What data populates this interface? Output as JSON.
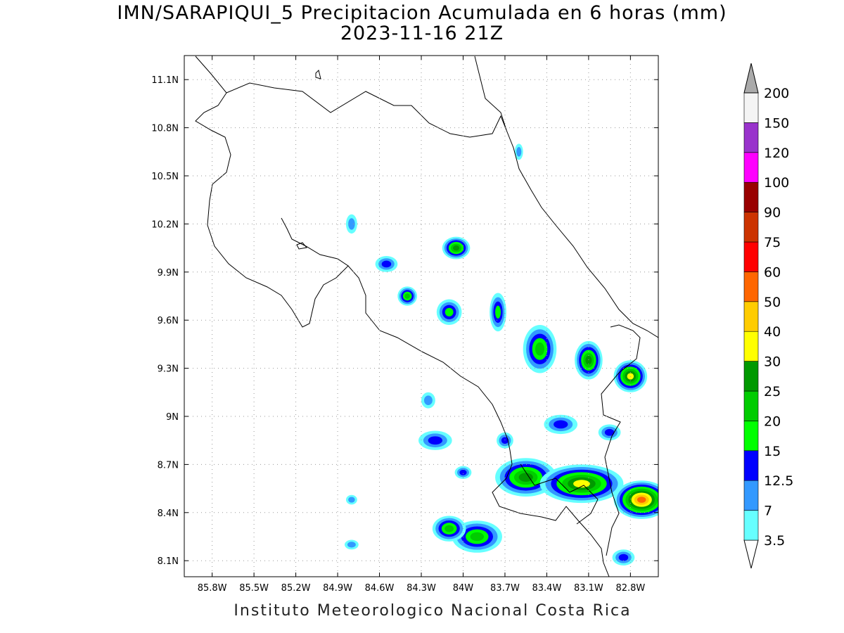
{
  "title": "IMN/SARAPIQUI_5 Precipitacion Acumulada en 6 horas (mm)",
  "subtitle": "2023-11-16 21Z",
  "footer": "Instituto Meteorologico Nacional Costa Rica",
  "map": {
    "lon_range": [
      -86.0,
      -82.6
    ],
    "lat_range": [
      8.0,
      11.25
    ],
    "lon_ticks": [
      {
        "value": -85.8,
        "label": "85.8W"
      },
      {
        "value": -85.5,
        "label": "85.5W"
      },
      {
        "value": -85.2,
        "label": "85.2W"
      },
      {
        "value": -84.9,
        "label": "84.9W"
      },
      {
        "value": -84.6,
        "label": "84.6W"
      },
      {
        "value": -84.3,
        "label": "84.3W"
      },
      {
        "value": -84.0,
        "label": "84W"
      },
      {
        "value": -83.7,
        "label": "83.7W"
      },
      {
        "value": -83.4,
        "label": "83.4W"
      },
      {
        "value": -83.1,
        "label": "83.1W"
      },
      {
        "value": -82.8,
        "label": "82.8W"
      }
    ],
    "lat_ticks": [
      {
        "value": 8.1,
        "label": "8.1N"
      },
      {
        "value": 8.4,
        "label": "8.4N"
      },
      {
        "value": 8.7,
        "label": "8.7N"
      },
      {
        "value": 9.0,
        "label": "9N"
      },
      {
        "value": 9.3,
        "label": "9.3N"
      },
      {
        "value": 9.6,
        "label": "9.6N"
      },
      {
        "value": 9.9,
        "label": "9.9N"
      },
      {
        "value": 10.2,
        "label": "10.2N"
      },
      {
        "value": 10.5,
        "label": "10.5N"
      },
      {
        "value": 10.8,
        "label": "10.8N"
      },
      {
        "value": 11.1,
        "label": "11.1N"
      }
    ],
    "grid": true
  },
  "colorbar": {
    "levels": [
      "3.5",
      "7",
      "12.5",
      "15",
      "20",
      "25",
      "30",
      "40",
      "50",
      "60",
      "75",
      "90",
      "100",
      "120",
      "150",
      "200"
    ],
    "colors": [
      "#ffffff",
      "#66ffff",
      "#3399ff",
      "#0000ff",
      "#00ff00",
      "#00cc00",
      "#009900",
      "#ffff00",
      "#ffcc00",
      "#ff6600",
      "#ff0000",
      "#cc3300",
      "#990000",
      "#ff00ff",
      "#9933cc",
      "#f4f4f4",
      "#aaaaaa"
    ]
  },
  "rain_cells": [
    {
      "lon": -83.55,
      "lat": 8.62,
      "rx": 0.22,
      "ry": 0.12,
      "max": 5
    },
    {
      "lon": -83.15,
      "lat": 8.58,
      "rx": 0.3,
      "ry": 0.12,
      "max": 6
    },
    {
      "lon": -82.72,
      "lat": 8.48,
      "rx": 0.2,
      "ry": 0.12,
      "max": 8
    },
    {
      "lon": -83.9,
      "lat": 8.25,
      "rx": 0.18,
      "ry": 0.1,
      "max": 4
    },
    {
      "lon": -84.1,
      "lat": 8.3,
      "rx": 0.12,
      "ry": 0.08,
      "max": 4
    },
    {
      "lon": -83.45,
      "lat": 9.42,
      "rx": 0.12,
      "ry": 0.15,
      "max": 4
    },
    {
      "lon": -83.1,
      "lat": 9.35,
      "rx": 0.1,
      "ry": 0.12,
      "max": 5
    },
    {
      "lon": -82.8,
      "lat": 9.25,
      "rx": 0.12,
      "ry": 0.1,
      "max": 6
    },
    {
      "lon": -84.05,
      "lat": 10.05,
      "rx": 0.1,
      "ry": 0.07,
      "max": 5
    },
    {
      "lon": -84.4,
      "lat": 9.75,
      "rx": 0.07,
      "ry": 0.06,
      "max": 4
    },
    {
      "lon": -84.1,
      "lat": 9.65,
      "rx": 0.09,
      "ry": 0.08,
      "max": 3
    },
    {
      "lon": -83.75,
      "lat": 9.65,
      "rx": 0.06,
      "ry": 0.12,
      "max": 3
    },
    {
      "lon": -84.55,
      "lat": 9.95,
      "rx": 0.08,
      "ry": 0.05,
      "max": 2
    },
    {
      "lon": -84.2,
      "lat": 8.85,
      "rx": 0.12,
      "ry": 0.06,
      "max": 2
    },
    {
      "lon": -83.7,
      "lat": 8.85,
      "rx": 0.06,
      "ry": 0.05,
      "max": 2
    },
    {
      "lon": -83.3,
      "lat": 8.95,
      "rx": 0.12,
      "ry": 0.06,
      "max": 2
    },
    {
      "lon": -82.95,
      "lat": 8.9,
      "rx": 0.08,
      "ry": 0.05,
      "max": 2
    },
    {
      "lon": -84.25,
      "lat": 9.1,
      "rx": 0.05,
      "ry": 0.05,
      "max": 1
    },
    {
      "lon": -84.8,
      "lat": 10.2,
      "rx": 0.04,
      "ry": 0.06,
      "max": 1
    },
    {
      "lon": -83.6,
      "lat": 10.65,
      "rx": 0.03,
      "ry": 0.05,
      "max": 1
    },
    {
      "lon": -84.8,
      "lat": 8.2,
      "rx": 0.05,
      "ry": 0.03,
      "max": 1
    },
    {
      "lon": -84.8,
      "lat": 8.48,
      "rx": 0.04,
      "ry": 0.03,
      "max": 1
    },
    {
      "lon": -82.85,
      "lat": 8.12,
      "rx": 0.08,
      "ry": 0.05,
      "max": 2
    },
    {
      "lon": -84.0,
      "lat": 8.65,
      "rx": 0.06,
      "ry": 0.04,
      "max": 2
    }
  ]
}
